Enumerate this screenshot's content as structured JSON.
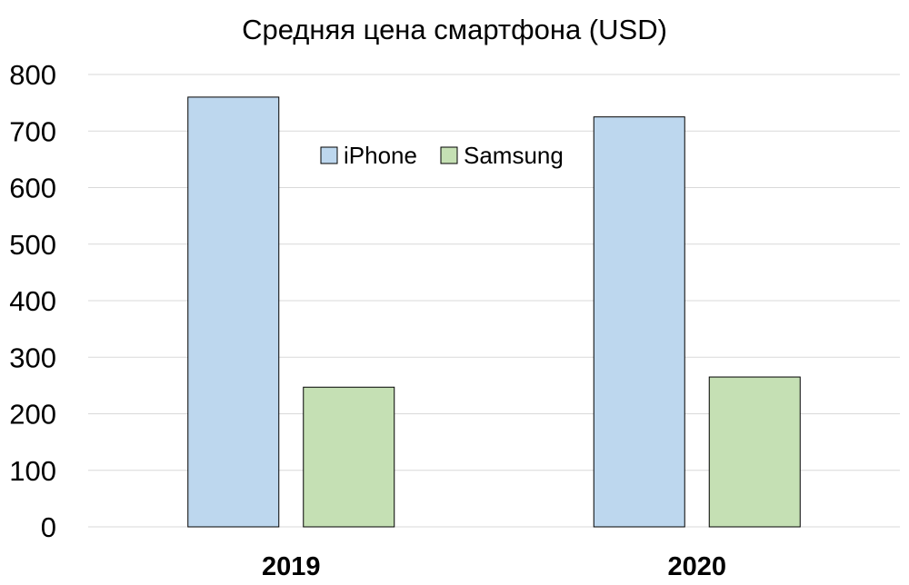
{
  "chart_data": {
    "type": "bar",
    "title": "Средняя цена смартфона (USD)",
    "xlabel": "",
    "ylabel": "",
    "categories": [
      "2019",
      "2020"
    ],
    "series": [
      {
        "name": "iPhone",
        "values": [
          760,
          725
        ],
        "color": "#bdd7ee"
      },
      {
        "name": "Samsung",
        "values": [
          247,
          265
        ],
        "color": "#c5e0b4"
      }
    ],
    "ylim": [
      0,
      800
    ],
    "yticks": [
      0,
      100,
      200,
      300,
      400,
      500,
      600,
      700,
      800
    ],
    "grid": true,
    "legend_position": "top-center"
  }
}
